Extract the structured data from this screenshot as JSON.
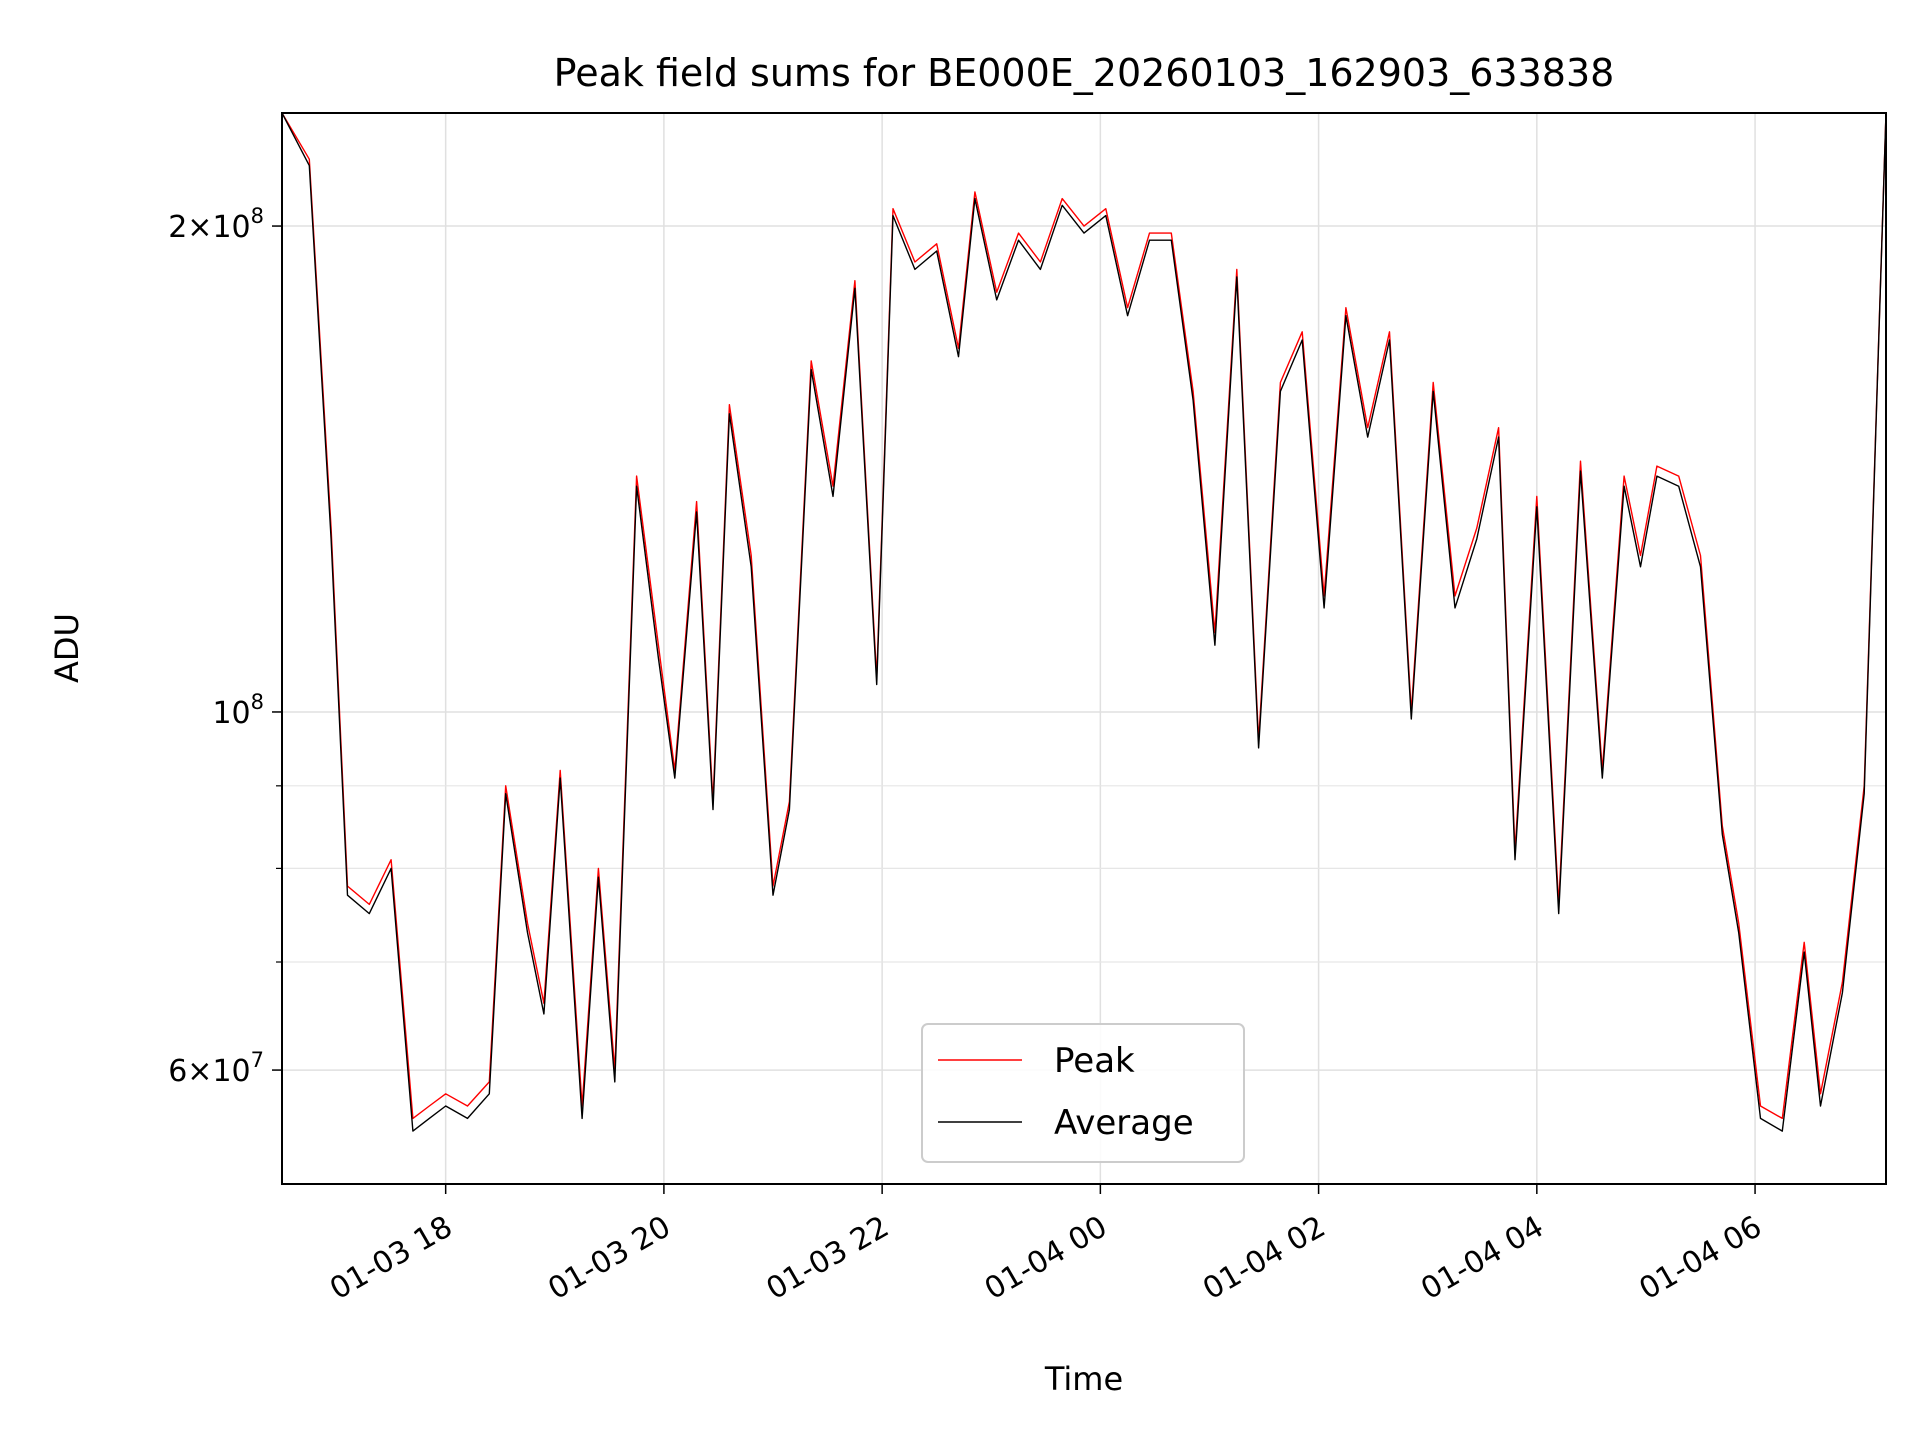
{
  "chart_data": {
    "type": "line",
    "title": "Peak field sums for BE000E_20260103_162903_633838",
    "xlabel": "Time",
    "ylabel": "ADU",
    "yscale": "log",
    "ylim": [
      51000000,
      235000000
    ],
    "xlim_hours": [
      16.5,
      31.2
    ],
    "grid": true,
    "legend_position": "lower-center",
    "x_ticks": [
      {
        "hour": 18,
        "label": "01-03 18"
      },
      {
        "hour": 20,
        "label": "01-03 20"
      },
      {
        "hour": 22,
        "label": "01-03 22"
      },
      {
        "hour": 24,
        "label": "01-04 00"
      },
      {
        "hour": 26,
        "label": "01-04 02"
      },
      {
        "hour": 28,
        "label": "01-04 04"
      },
      {
        "hour": 30,
        "label": "01-04 06"
      }
    ],
    "y_major_ticks": [
      {
        "value": 60000000,
        "mantissa": "6",
        "exponent": "7"
      },
      {
        "value": 100000000,
        "mantissa": "",
        "exponent": "8"
      },
      {
        "value": 200000000,
        "mantissa": "2",
        "exponent": "8"
      }
    ],
    "y_minor_ticks": [
      70000000,
      80000000,
      90000000
    ],
    "x_hours": [
      16.5,
      16.75,
      16.95,
      17.1,
      17.3,
      17.5,
      17.7,
      17.85,
      18.0,
      18.2,
      18.4,
      18.55,
      18.75,
      18.9,
      19.05,
      19.25,
      19.4,
      19.55,
      19.75,
      19.95,
      20.1,
      20.3,
      20.45,
      20.6,
      20.8,
      21.0,
      21.15,
      21.35,
      21.55,
      21.75,
      21.95,
      22.1,
      22.3,
      22.5,
      22.7,
      22.85,
      23.05,
      23.25,
      23.45,
      23.65,
      23.85,
      24.05,
      24.25,
      24.45,
      24.65,
      24.85,
      25.05,
      25.25,
      25.45,
      25.65,
      25.85,
      26.05,
      26.25,
      26.45,
      26.65,
      26.85,
      27.05,
      27.25,
      27.45,
      27.65,
      27.8,
      28.0,
      28.2,
      28.4,
      28.6,
      28.8,
      28.95,
      29.1,
      29.3,
      29.5,
      29.7,
      29.85,
      30.05,
      30.25,
      30.45,
      30.6,
      30.8,
      31.0,
      31.2
    ],
    "series": [
      {
        "name": "Peak",
        "color": "#ff0000",
        "values": [
          235000000,
          220000000,
          130000000,
          78000000,
          76000000,
          81000000,
          56000000,
          57000000,
          58000000,
          57000000,
          59000000,
          90000000,
          74000000,
          66000000,
          92000000,
          57000000,
          80000000,
          60000000,
          140000000,
          110000000,
          92000000,
          135000000,
          88000000,
          155000000,
          125000000,
          78000000,
          88000000,
          165000000,
          138000000,
          185000000,
          105000000,
          205000000,
          190000000,
          195000000,
          168000000,
          210000000,
          182000000,
          198000000,
          190000000,
          208000000,
          200000000,
          205000000,
          178000000,
          198000000,
          198000000,
          158000000,
          112000000,
          188000000,
          96000000,
          160000000,
          172000000,
          118000000,
          178000000,
          150000000,
          172000000,
          100000000,
          160000000,
          118000000,
          130000000,
          150000000,
          82000000,
          136000000,
          76000000,
          143000000,
          92000000,
          140000000,
          125000000,
          142000000,
          140000000,
          125000000,
          85000000,
          74000000,
          57000000,
          56000000,
          72000000,
          58000000,
          68000000,
          90000000,
          235000000
        ]
      },
      {
        "name": "Average",
        "color": "#000000",
        "values": [
          235000000,
          218000000,
          128000000,
          77000000,
          75000000,
          80000000,
          55000000,
          56000000,
          57000000,
          56000000,
          58000000,
          89000000,
          73000000,
          65000000,
          91000000,
          56000000,
          79000000,
          59000000,
          138000000,
          108000000,
          91000000,
          133000000,
          87000000,
          153000000,
          123000000,
          77000000,
          87000000,
          163000000,
          136000000,
          183000000,
          104000000,
          203000000,
          188000000,
          193000000,
          166000000,
          208000000,
          180000000,
          196000000,
          188000000,
          206000000,
          198000000,
          203000000,
          176000000,
          196000000,
          196000000,
          156000000,
          110000000,
          186000000,
          95000000,
          158000000,
          170000000,
          116000000,
          176000000,
          148000000,
          170000000,
          99000000,
          158000000,
          116000000,
          128000000,
          148000000,
          81000000,
          134000000,
          75000000,
          141000000,
          91000000,
          138000000,
          123000000,
          140000000,
          138000000,
          123000000,
          84000000,
          73000000,
          56000000,
          55000000,
          71000000,
          57000000,
          67000000,
          89000000,
          235000000
        ]
      }
    ]
  }
}
